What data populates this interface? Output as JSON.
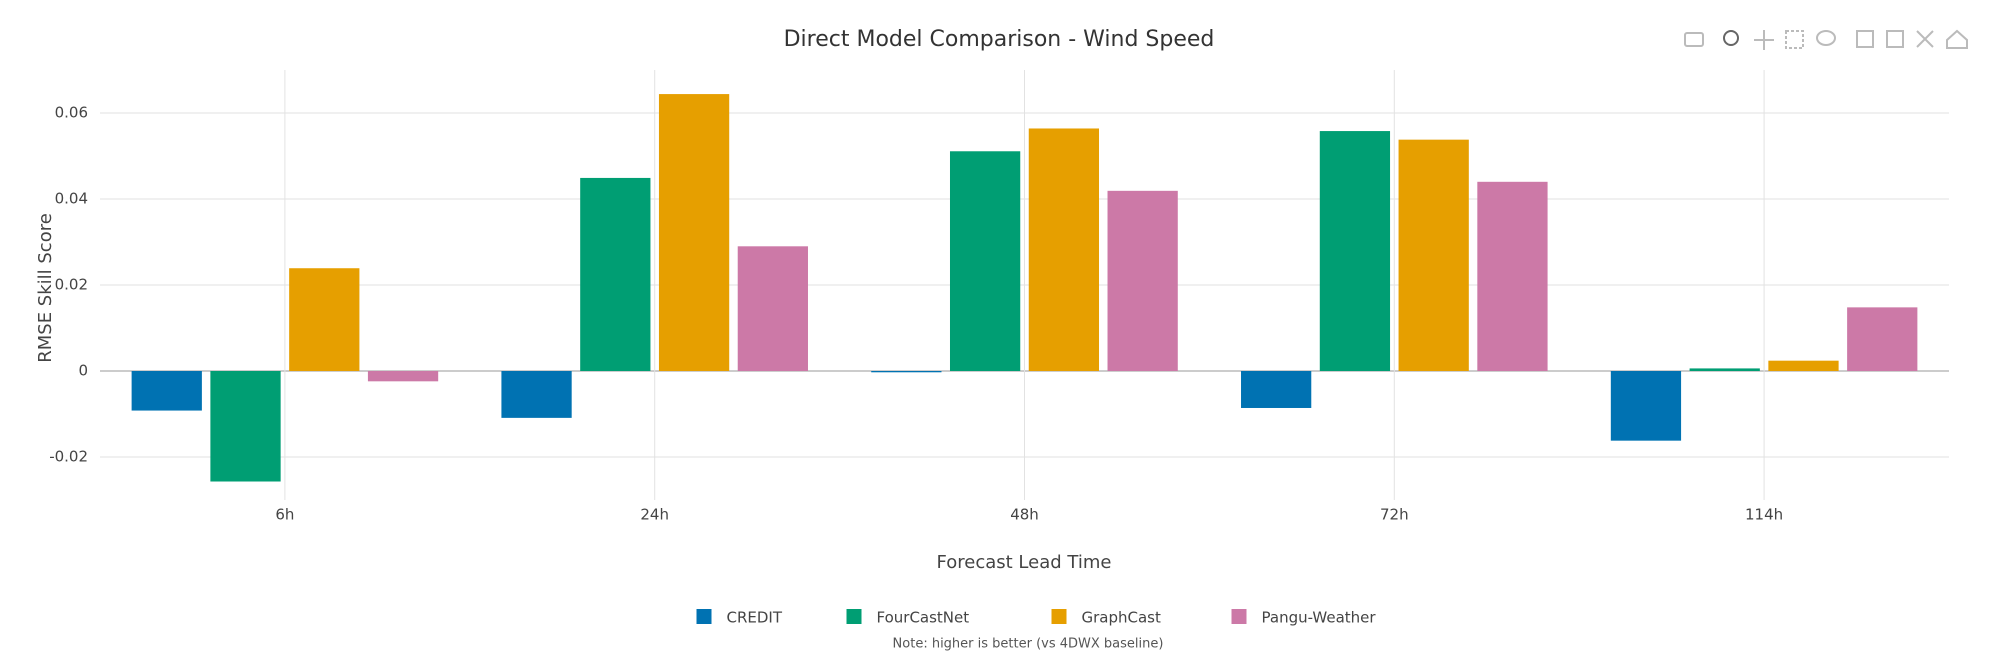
{
  "chart_data": {
    "type": "bar",
    "title": "Direct Model Comparison - Wind Speed",
    "x_label": "Forecast Lead Time",
    "y_label": "RMSE Skill Score",
    "note": "Note: higher is better (vs 4DWX baseline)",
    "categories": [
      "6h",
      "24h",
      "48h",
      "72h",
      "114h"
    ],
    "series": [
      {
        "name": "CREDIT",
        "color": "#0072b2",
        "values": [
          -0.0092,
          -0.0109,
          -0.0003,
          -0.0086,
          -0.0162
        ]
      },
      {
        "name": "FourCastNet",
        "color": "#009e73",
        "values": [
          -0.0257,
          0.0449,
          0.0511,
          0.0558,
          0.0006
        ]
      },
      {
        "name": "GraphCast",
        "color": "#e69f00",
        "values": [
          0.0239,
          0.0644,
          0.0564,
          0.0538,
          0.0024
        ]
      },
      {
        "name": "Pangu-Weather",
        "color": "#cc79a7",
        "values": [
          -0.0024,
          0.029,
          0.0419,
          0.044,
          0.0148
        ]
      }
    ],
    "ylim": [
      -0.03,
      0.07
    ],
    "yticks": [
      -0.02,
      0,
      0.02,
      0.04,
      0.06
    ],
    "grid": true
  }
}
